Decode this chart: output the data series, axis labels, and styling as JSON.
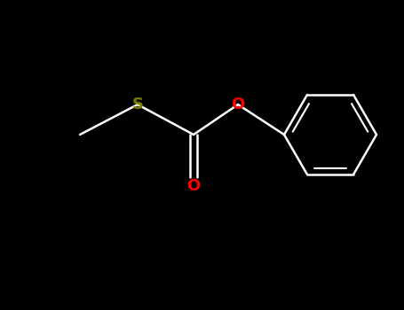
{
  "bg_color": "#000000",
  "bond_color": "#ffffff",
  "S_color": "#808000",
  "O_color": "#ff0000",
  "S_label": "S",
  "O_label": "O",
  "O2_label": "O",
  "figsize": [
    4.55,
    3.5
  ],
  "dpi": 100,
  "bond_lw": 1.8,
  "ring_lw": 1.8,
  "font_size": 13
}
